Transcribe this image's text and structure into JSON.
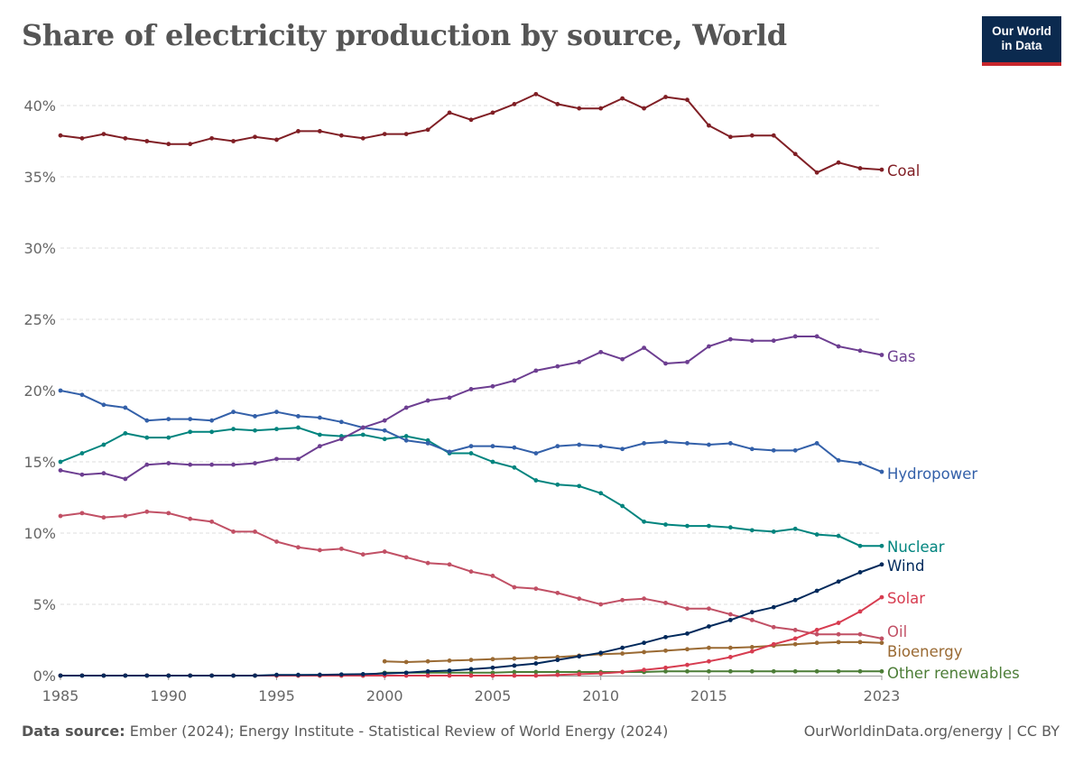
{
  "header": {
    "title": "Share of electricity production by source, World",
    "logo_line1": "Our World",
    "logo_line2": "in Data"
  },
  "footer": {
    "source_label": "Data source:",
    "source_text": "Ember (2024); Energy Institute - Statistical Review of World Energy (2024)",
    "credit": "OurWorldinData.org/energy | CC BY"
  },
  "chart_data": {
    "type": "line",
    "title": "Share of electricity production by source, World",
    "xlabel": "",
    "ylabel": "",
    "xlim": [
      1985,
      2023
    ],
    "ylim": [
      0,
      40
    ],
    "x_ticks": [
      "1985",
      "1990",
      "1995",
      "2000",
      "2005",
      "2010",
      "2015",
      "2023"
    ],
    "y_ticks": [
      "0%",
      "5%",
      "10%",
      "15%",
      "20%",
      "25%",
      "30%",
      "35%",
      "40%"
    ],
    "y_tick_values": [
      0,
      5,
      10,
      15,
      20,
      25,
      30,
      35,
      40
    ],
    "grid": true,
    "legend": "labels at line ends",
    "series": [
      {
        "name": "Coal",
        "color": "#801f25",
        "x": [
          1985,
          1986,
          1987,
          1988,
          1989,
          1990,
          1991,
          1992,
          1993,
          1994,
          1995,
          1996,
          1997,
          1998,
          1999,
          2000,
          2001,
          2002,
          2003,
          2004,
          2005,
          2006,
          2007,
          2008,
          2009,
          2010,
          2011,
          2012,
          2013,
          2014,
          2015,
          2016,
          2017,
          2018,
          2019,
          2020,
          2021,
          2022,
          2023
        ],
        "values": [
          37.9,
          37.7,
          38.0,
          37.7,
          37.5,
          37.3,
          37.3,
          37.7,
          37.5,
          37.8,
          37.6,
          38.2,
          38.2,
          37.9,
          37.7,
          38.0,
          38.0,
          38.3,
          39.5,
          39.0,
          39.5,
          40.1,
          40.8,
          40.1,
          39.8,
          39.8,
          40.5,
          39.8,
          40.6,
          40.4,
          38.6,
          37.8,
          37.9,
          37.9,
          36.6,
          35.3,
          36.0,
          35.6,
          35.5
        ]
      },
      {
        "name": "Gas",
        "color": "#6d3e91",
        "x": [
          1985,
          1986,
          1987,
          1988,
          1989,
          1990,
          1991,
          1992,
          1993,
          1994,
          1995,
          1996,
          1997,
          1998,
          1999,
          2000,
          2001,
          2002,
          2003,
          2004,
          2005,
          2006,
          2007,
          2008,
          2009,
          2010,
          2011,
          2012,
          2013,
          2014,
          2015,
          2016,
          2017,
          2018,
          2019,
          2020,
          2021,
          2022,
          2023
        ],
        "values": [
          14.4,
          14.1,
          14.2,
          13.8,
          14.8,
          14.9,
          14.8,
          14.8,
          14.8,
          14.9,
          15.2,
          15.2,
          16.1,
          16.6,
          17.4,
          17.9,
          18.8,
          19.3,
          19.5,
          20.1,
          20.3,
          20.7,
          21.4,
          21.7,
          22.0,
          22.7,
          22.2,
          23.0,
          21.9,
          22.0,
          23.1,
          23.6,
          23.5,
          23.5,
          23.8,
          23.8,
          23.1,
          22.8,
          22.5
        ]
      },
      {
        "name": "Hydropower",
        "color": "#3360a9",
        "x": [
          1985,
          1986,
          1987,
          1988,
          1989,
          1990,
          1991,
          1992,
          1993,
          1994,
          1995,
          1996,
          1997,
          1998,
          1999,
          2000,
          2001,
          2002,
          2003,
          2004,
          2005,
          2006,
          2007,
          2008,
          2009,
          2010,
          2011,
          2012,
          2013,
          2014,
          2015,
          2016,
          2017,
          2018,
          2019,
          2020,
          2021,
          2022,
          2023
        ],
        "values": [
          20.0,
          19.7,
          19.0,
          18.8,
          17.9,
          18.0,
          18.0,
          17.9,
          18.5,
          18.2,
          18.5,
          18.2,
          18.1,
          17.8,
          17.4,
          17.2,
          16.5,
          16.3,
          15.7,
          16.1,
          16.1,
          16.0,
          15.6,
          16.1,
          16.2,
          16.1,
          15.9,
          16.3,
          16.4,
          16.3,
          16.2,
          16.3,
          15.9,
          15.8,
          15.8,
          16.3,
          15.1,
          14.9,
          14.3
        ]
      },
      {
        "name": "Nuclear",
        "color": "#00847e",
        "x": [
          1985,
          1986,
          1987,
          1988,
          1989,
          1990,
          1991,
          1992,
          1993,
          1994,
          1995,
          1996,
          1997,
          1998,
          1999,
          2000,
          2001,
          2002,
          2003,
          2004,
          2005,
          2006,
          2007,
          2008,
          2009,
          2010,
          2011,
          2012,
          2013,
          2014,
          2015,
          2016,
          2017,
          2018,
          2019,
          2020,
          2021,
          2022,
          2023
        ],
        "values": [
          15.0,
          15.6,
          16.2,
          17.0,
          16.7,
          16.7,
          17.1,
          17.1,
          17.3,
          17.2,
          17.3,
          17.4,
          16.9,
          16.8,
          16.9,
          16.6,
          16.8,
          16.5,
          15.6,
          15.6,
          15.0,
          14.6,
          13.7,
          13.4,
          13.3,
          12.8,
          11.9,
          10.8,
          10.6,
          10.5,
          10.5,
          10.4,
          10.2,
          10.1,
          10.3,
          9.9,
          9.8,
          9.1,
          9.1
        ]
      },
      {
        "name": "Wind",
        "color": "#00295b",
        "x": [
          1985,
          1986,
          1987,
          1988,
          1989,
          1990,
          1991,
          1992,
          1993,
          1994,
          1995,
          1996,
          1997,
          1998,
          1999,
          2000,
          2001,
          2002,
          2003,
          2004,
          2005,
          2006,
          2007,
          2008,
          2009,
          2010,
          2011,
          2012,
          2013,
          2014,
          2015,
          2016,
          2017,
          2018,
          2019,
          2020,
          2021,
          2022,
          2023
        ],
        "values": [
          0.0,
          0.0,
          0.0,
          0.0,
          0.0,
          0.0,
          0.0,
          0.0,
          0.0,
          0.0,
          0.05,
          0.05,
          0.06,
          0.08,
          0.1,
          0.15,
          0.2,
          0.3,
          0.35,
          0.45,
          0.55,
          0.7,
          0.85,
          1.1,
          1.35,
          1.6,
          1.95,
          2.3,
          2.7,
          2.95,
          3.45,
          3.9,
          4.45,
          4.8,
          5.3,
          5.95,
          6.6,
          7.25,
          7.8
        ]
      },
      {
        "name": "Solar",
        "color": "#c15065",
        "line_color": "#d73c50",
        "x": [
          1985,
          1986,
          1987,
          1988,
          1989,
          1990,
          1991,
          1992,
          1993,
          1994,
          1995,
          1996,
          1997,
          1998,
          1999,
          2000,
          2001,
          2002,
          2003,
          2004,
          2005,
          2006,
          2007,
          2008,
          2009,
          2010,
          2011,
          2012,
          2013,
          2014,
          2015,
          2016,
          2017,
          2018,
          2019,
          2020,
          2021,
          2022,
          2023
        ],
        "values": [
          0.0,
          0.0,
          0.0,
          0.0,
          0.0,
          0.0,
          0.0,
          0.0,
          0.0,
          0.0,
          0.0,
          0.0,
          0.0,
          0.0,
          0.0,
          0.0,
          0.0,
          0.0,
          0.0,
          0.0,
          0.0,
          0.0,
          0.0,
          0.05,
          0.1,
          0.15,
          0.25,
          0.4,
          0.55,
          0.75,
          1.0,
          1.3,
          1.7,
          2.2,
          2.6,
          3.2,
          3.7,
          4.5,
          5.5
        ]
      },
      {
        "name": "Oil",
        "color": "#c15065",
        "x": [
          1985,
          1986,
          1987,
          1988,
          1989,
          1990,
          1991,
          1992,
          1993,
          1994,
          1995,
          1996,
          1997,
          1998,
          1999,
          2000,
          2001,
          2002,
          2003,
          2004,
          2005,
          2006,
          2007,
          2008,
          2009,
          2010,
          2011,
          2012,
          2013,
          2014,
          2015,
          2016,
          2017,
          2018,
          2019,
          2020,
          2021,
          2022,
          2023
        ],
        "values": [
          11.2,
          11.4,
          11.1,
          11.2,
          11.5,
          11.4,
          11.0,
          10.8,
          10.1,
          10.1,
          9.4,
          9.0,
          8.8,
          8.9,
          8.5,
          8.7,
          8.3,
          7.9,
          7.8,
          7.3,
          7.0,
          6.2,
          6.1,
          5.8,
          5.4,
          5.0,
          5.3,
          5.4,
          5.1,
          4.7,
          4.7,
          4.3,
          3.9,
          3.4,
          3.2,
          2.9,
          2.9,
          2.9,
          2.6
        ]
      },
      {
        "name": "Bioenergy",
        "color": "#9a6a33",
        "x": [
          2000,
          2001,
          2002,
          2003,
          2004,
          2005,
          2006,
          2007,
          2008,
          2009,
          2010,
          2011,
          2012,
          2013,
          2014,
          2015,
          2016,
          2017,
          2018,
          2019,
          2020,
          2021,
          2022,
          2023
        ],
        "values": [
          1.0,
          0.95,
          1.0,
          1.05,
          1.1,
          1.15,
          1.2,
          1.25,
          1.3,
          1.4,
          1.5,
          1.55,
          1.65,
          1.75,
          1.85,
          1.95,
          1.95,
          2.0,
          2.1,
          2.2,
          2.3,
          2.35,
          2.35,
          2.3
        ]
      },
      {
        "name": "Other renewables",
        "color": "#4c7d37",
        "x": [
          1985,
          1986,
          1987,
          1988,
          1989,
          1990,
          1991,
          1992,
          1993,
          1994,
          1995,
          1996,
          1997,
          1998,
          1999,
          2000,
          2001,
          2002,
          2003,
          2004,
          2005,
          2006,
          2007,
          2008,
          2009,
          2010,
          2011,
          2012,
          2013,
          2014,
          2015,
          2016,
          2017,
          2018,
          2019,
          2020,
          2021,
          2022,
          2023
        ],
        "values": [
          0.0,
          0.0,
          0.0,
          0.0,
          0.0,
          0.0,
          0.0,
          0.0,
          0.0,
          0.0,
          0.0,
          0.0,
          0.0,
          0.0,
          0.0,
          0.2,
          0.2,
          0.2,
          0.2,
          0.2,
          0.2,
          0.25,
          0.25,
          0.25,
          0.25,
          0.25,
          0.25,
          0.25,
          0.3,
          0.3,
          0.3,
          0.3,
          0.3,
          0.3,
          0.3,
          0.3,
          0.3,
          0.3,
          0.3
        ]
      }
    ]
  }
}
